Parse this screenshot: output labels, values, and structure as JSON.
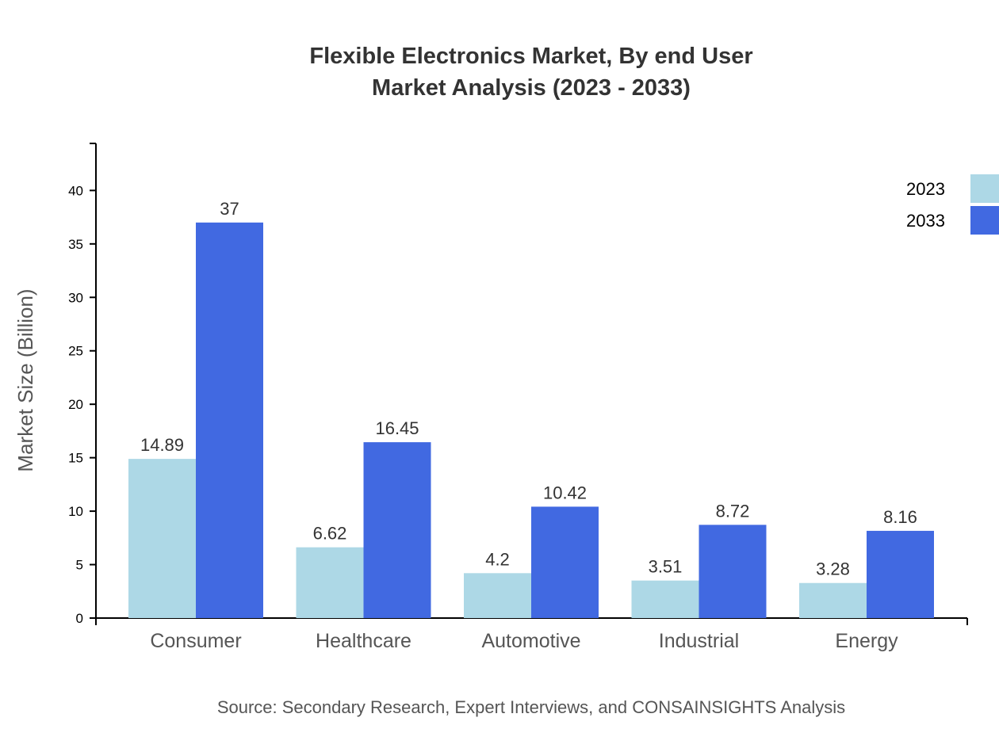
{
  "chart_data": {
    "type": "bar",
    "title": [
      "Flexible Electronics Market, By end User",
      "Market Analysis (2023 - 2033)"
    ],
    "xlabel": "",
    "ylabel": "Market Size (Billion)",
    "ylim": [
      0,
      44.4
    ],
    "yticks": [
      0,
      5,
      10,
      15,
      20,
      25,
      30,
      35,
      40
    ],
    "categories": [
      "Consumer",
      "Healthcare",
      "Automotive",
      "Industrial",
      "Energy"
    ],
    "series": [
      {
        "name": "2023",
        "color": "#ADD8E6",
        "values": [
          14.89,
          6.62,
          4.2,
          3.51,
          3.28
        ]
      },
      {
        "name": "2033",
        "color": "#4169E1",
        "values": [
          37,
          16.45,
          10.42,
          8.72,
          8.16
        ]
      }
    ],
    "grid": false,
    "legend": "top-right",
    "source": "Source: Secondary Research, Expert Interviews, and CONSAINSIGHTS Analysis"
  }
}
